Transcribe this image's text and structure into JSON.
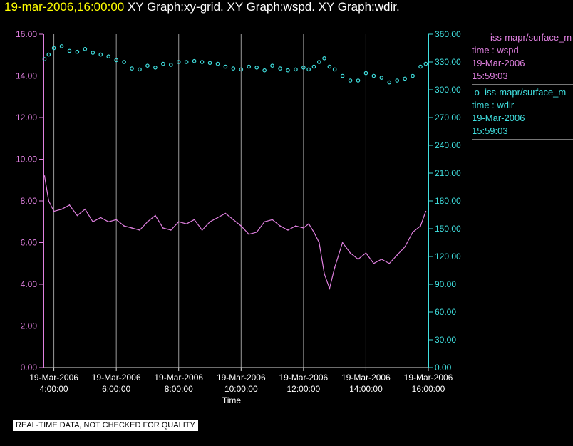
{
  "header": {
    "timestamp": "19-mar-2006,16:00:00",
    "graphs": "XY Graph:xy-grid.  XY Graph:wspd.  XY Graph:wdir."
  },
  "legend": [
    {
      "line1": "iss-mapr/surface_m",
      "line2": "time : wspd",
      "line3": "19-Mar-2006",
      "line4": "15:59:03",
      "color": "#e080e0",
      "marker": "line"
    },
    {
      "line1": "iss-mapr/surface_m",
      "line2": "time : wdir",
      "line3": "19-Mar-2006",
      "line4": "15:59:03",
      "color": "#40e0e0",
      "marker": "circle"
    }
  ],
  "disclaimer": "REAL-TIME DATA, NOT CHECKED FOR QUALITY",
  "chart_data": {
    "type": "line",
    "xlabel": "Time",
    "x_ticks": [
      {
        "h": 4,
        "l1": "19-Mar-2006",
        "l2": "4:00:00"
      },
      {
        "h": 6,
        "l1": "19-Mar-2006",
        "l2": "6:00:00"
      },
      {
        "h": 8,
        "l1": "19-Mar-2006",
        "l2": "8:00:00"
      },
      {
        "h": 10,
        "l1": "19-Mar-2006",
        "l2": "10:00:00"
      },
      {
        "h": 12,
        "l1": "19-Mar-2006",
        "l2": "12:00:00"
      },
      {
        "h": 14,
        "l1": "19-Mar-2006",
        "l2": "14:00:00"
      },
      {
        "h": 16,
        "l1": "19-Mar-2006",
        "l2": "16:00:00"
      }
    ],
    "xlim": [
      "19-Mar-2006 3:40:00",
      "19-Mar-2006 16:00:00"
    ],
    "grid": "vertical",
    "y_left": {
      "lim": [
        0,
        16
      ],
      "ticks": [
        "0.00",
        "2.00",
        "4.00",
        "6.00",
        "8.00",
        "10.00",
        "12.00",
        "14.00",
        "16.00"
      ],
      "color": "#e080e0"
    },
    "y_right": {
      "lim": [
        0,
        360
      ],
      "ticks": [
        "0.00",
        "30.00",
        "60.00",
        "90.00",
        "120.00",
        "150.00",
        "180.00",
        "210.00",
        "240.00",
        "270.00",
        "300.00",
        "330.00",
        "360.00"
      ],
      "color": "#40e0e0"
    },
    "series": [
      {
        "axis": "left",
        "color": "#e080e0",
        "style": "line",
        "x": [
          "03:42",
          "03:50",
          "04:00",
          "04:15",
          "04:30",
          "04:45",
          "05:00",
          "05:15",
          "05:30",
          "05:45",
          "06:00",
          "06:15",
          "06:30",
          "06:45",
          "07:00",
          "07:15",
          "07:30",
          "07:45",
          "08:00",
          "08:15",
          "08:30",
          "08:45",
          "09:00",
          "09:15",
          "09:30",
          "09:45",
          "10:00",
          "10:15",
          "10:30",
          "10:45",
          "11:00",
          "11:15",
          "11:30",
          "11:45",
          "12:00",
          "12:10",
          "12:20",
          "12:30",
          "12:40",
          "12:50",
          "13:00",
          "13:15",
          "13:30",
          "13:45",
          "14:00",
          "14:15",
          "14:30",
          "14:45",
          "15:00",
          "15:15",
          "15:30",
          "15:45",
          "15:55"
        ],
        "y": [
          9.2,
          8.0,
          7.5,
          7.6,
          7.8,
          7.3,
          7.6,
          7.0,
          7.2,
          7.0,
          7.1,
          6.8,
          6.7,
          6.6,
          7.0,
          7.3,
          6.7,
          6.6,
          7.0,
          6.9,
          7.1,
          6.6,
          7.0,
          7.2,
          7.4,
          7.1,
          6.8,
          6.4,
          6.5,
          7.0,
          7.1,
          6.8,
          6.6,
          6.8,
          6.7,
          6.9,
          6.5,
          6.0,
          4.5,
          3.8,
          4.8,
          6.0,
          5.5,
          5.2,
          5.5,
          5.0,
          5.2,
          5.0,
          5.4,
          5.8,
          6.5,
          6.8,
          7.5
        ]
      },
      {
        "axis": "right",
        "color": "#40e0e0",
        "style": "circles",
        "x": [
          "03:42",
          "03:50",
          "04:00",
          "04:15",
          "04:30",
          "04:45",
          "05:00",
          "05:15",
          "05:30",
          "05:45",
          "06:00",
          "06:15",
          "06:30",
          "06:45",
          "07:00",
          "07:15",
          "07:30",
          "07:45",
          "08:00",
          "08:15",
          "08:30",
          "08:45",
          "09:00",
          "09:15",
          "09:30",
          "09:45",
          "10:00",
          "10:15",
          "10:30",
          "10:45",
          "11:00",
          "11:15",
          "11:30",
          "11:45",
          "12:00",
          "12:10",
          "12:20",
          "12:30",
          "12:40",
          "12:50",
          "13:00",
          "13:15",
          "13:30",
          "13:45",
          "14:00",
          "14:15",
          "14:30",
          "14:45",
          "15:00",
          "15:15",
          "15:30",
          "15:45",
          "15:55"
        ],
        "y": [
          333,
          338,
          345,
          347,
          342,
          341,
          344,
          340,
          338,
          336,
          332,
          330,
          323,
          322,
          326,
          324,
          328,
          327,
          330,
          330,
          331,
          330,
          329,
          328,
          325,
          323,
          322,
          325,
          324,
          321,
          326,
          323,
          321,
          322,
          324,
          322,
          325,
          330,
          334,
          325,
          322,
          315,
          310,
          310,
          318,
          315,
          313,
          308,
          310,
          312,
          315,
          325,
          328
        ]
      }
    ]
  }
}
